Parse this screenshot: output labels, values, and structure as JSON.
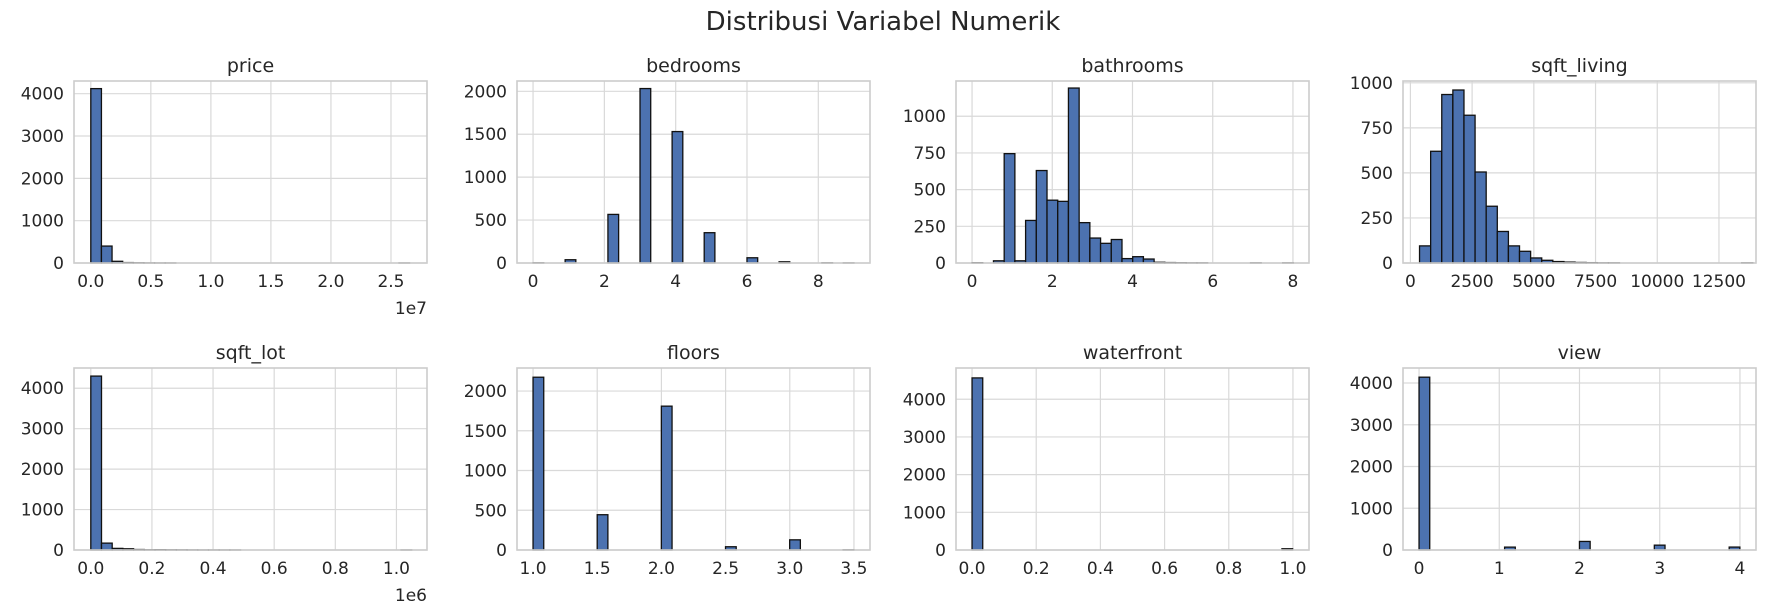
{
  "chart_data": {
    "type": "histogram-grid",
    "title": "Distribusi Variabel Numerik",
    "bar_color": "#4c72b0",
    "edge_color": "#111111",
    "grid": true,
    "panels": [
      {
        "title": "price",
        "type": "bar",
        "xlim": [
          -1400000,
          28000000
        ],
        "ylim": [
          0,
          4300
        ],
        "xticks": [
          0,
          5000000,
          10000000,
          15000000,
          20000000,
          25000000
        ],
        "xticklabels": [
          "0.0",
          "0.5",
          "1.0",
          "1.5",
          "2.0",
          "2.5"
        ],
        "yticks": [
          0,
          1000,
          2000,
          3000,
          4000
        ],
        "yticklabels": [
          "0",
          "1000",
          "2000",
          "3000",
          "4000"
        ],
        "x_offset_label": "1e7",
        "bin_start": 0,
        "bin_width": 885000,
        "values": [
          4120,
          400,
          40,
          10,
          5,
          2,
          1,
          1,
          0,
          0,
          0,
          0,
          0,
          0,
          0,
          0,
          0,
          0,
          0,
          0,
          0,
          0,
          0,
          0,
          0,
          0,
          0,
          0,
          0,
          1
        ]
      },
      {
        "title": "bedrooms",
        "type": "bar",
        "xlim": [
          -0.45,
          9.45
        ],
        "ylim": [
          0,
          2120
        ],
        "xticks": [
          0,
          2,
          4,
          6,
          8
        ],
        "xticklabels": [
          "0",
          "2",
          "4",
          "6",
          "8"
        ],
        "yticks": [
          0,
          500,
          1000,
          1500,
          2000
        ],
        "yticklabels": [
          "0",
          "500",
          "1000",
          "1500",
          "2000"
        ],
        "x_offset_label": "",
        "bin_start": 0,
        "bin_width": 0.3,
        "values": [
          2,
          0,
          0,
          38,
          0,
          0,
          0,
          566,
          0,
          0,
          2032,
          0,
          0,
          1531,
          0,
          0,
          353,
          0,
          0,
          0,
          61,
          0,
          0,
          14,
          0,
          0,
          0,
          2,
          0,
          1
        ]
      },
      {
        "title": "bathrooms",
        "type": "bar",
        "xlim": [
          -0.4,
          8.4
        ],
        "ylim": [
          0,
          1240
        ],
        "xticks": [
          0,
          2,
          4,
          6,
          8
        ],
        "xticklabels": [
          "0",
          "2",
          "4",
          "6",
          "8"
        ],
        "yticks": [
          0,
          250,
          500,
          750,
          1000
        ],
        "yticklabels": [
          "0",
          "250",
          "500",
          "750",
          "1000"
        ],
        "x_offset_label": "",
        "bin_start": 0,
        "bin_width": 0.267,
        "values": [
          2,
          0,
          15,
          745,
          15,
          290,
          630,
          428,
          420,
          1192,
          275,
          170,
          134,
          160,
          30,
          43,
          27,
          5,
          3,
          2,
          1,
          1,
          0,
          0,
          0,
          0,
          1,
          0,
          0,
          1
        ]
      },
      {
        "title": "sqft_living",
        "type": "bar",
        "xlim": [
          -300,
          14000
        ],
        "ylim": [
          0,
          1010
        ],
        "xticks": [
          0,
          2500,
          5000,
          7500,
          10000,
          12500
        ],
        "xticklabels": [
          "0",
          "2500",
          "5000",
          "7500",
          "10000",
          "12500"
        ],
        "yticks": [
          0,
          250,
          500,
          750,
          1000
        ],
        "yticklabels": [
          "0",
          "250",
          "500",
          "750",
          "1000"
        ],
        "x_offset_label": "",
        "bin_start": 370,
        "bin_width": 450,
        "values": [
          95,
          620,
          935,
          960,
          820,
          505,
          315,
          175,
          95,
          65,
          28,
          15,
          8,
          5,
          3,
          2,
          1,
          1,
          0,
          0,
          0,
          0,
          0,
          0,
          0,
          0,
          0,
          0,
          0,
          1
        ]
      },
      {
        "title": "sqft_lot",
        "type": "bar",
        "xlim": [
          -55000,
          1100000
        ],
        "ylim": [
          0,
          4500
        ],
        "xticks": [
          0,
          200000,
          400000,
          600000,
          800000,
          1000000
        ],
        "xticklabels": [
          "0.0",
          "0.2",
          "0.4",
          "0.6",
          "0.8",
          "1.0"
        ],
        "yticks": [
          0,
          1000,
          2000,
          3000,
          4000
        ],
        "yticklabels": [
          "0",
          "1000",
          "2000",
          "3000",
          "4000"
        ],
        "x_offset_label": "1e6",
        "bin_start": 0,
        "bin_width": 35000,
        "values": [
          4300,
          170,
          40,
          30,
          12,
          6,
          8,
          5,
          4,
          2,
          1,
          1,
          1,
          1,
          0,
          0,
          0,
          0,
          0,
          0,
          0,
          0,
          0,
          0,
          0,
          0,
          0,
          0,
          0,
          1
        ]
      },
      {
        "title": "floors",
        "type": "bar",
        "xlim": [
          0.875,
          3.625
        ],
        "ylim": [
          0,
          2290
        ],
        "xticks": [
          1.0,
          1.5,
          2.0,
          2.5,
          3.0,
          3.5
        ],
        "xticklabels": [
          "1.0",
          "1.5",
          "2.0",
          "2.5",
          "3.0",
          "3.5"
        ],
        "yticks": [
          0,
          500,
          1000,
          1500,
          2000
        ],
        "yticklabels": [
          "0",
          "500",
          "1000",
          "1500",
          "2000"
        ],
        "x_offset_label": "",
        "bin_start": 1.0,
        "bin_width": 0.0833,
        "values": [
          2174,
          0,
          0,
          0,
          0,
          0,
          444,
          0,
          0,
          0,
          0,
          0,
          1810,
          0,
          0,
          0,
          0,
          0,
          41,
          0,
          0,
          0,
          0,
          0,
          128,
          0,
          0,
          0,
          0,
          2
        ]
      },
      {
        "title": "waterfront",
        "type": "bar",
        "xlim": [
          -0.05,
          1.05
        ],
        "ylim": [
          0,
          4830
        ],
        "xticks": [
          0.0,
          0.2,
          0.4,
          0.6,
          0.8,
          1.0
        ],
        "xticklabels": [
          "0.0",
          "0.2",
          "0.4",
          "0.6",
          "0.8",
          "1.0"
        ],
        "yticks": [
          0,
          1000,
          2000,
          3000,
          4000
        ],
        "yticklabels": [
          "0",
          "1000",
          "2000",
          "3000",
          "4000"
        ],
        "x_offset_label": "",
        "bin_start": 0,
        "bin_width": 0.0333,
        "values": [
          4567,
          0,
          0,
          0,
          0,
          0,
          0,
          0,
          0,
          0,
          0,
          0,
          0,
          0,
          0,
          0,
          0,
          0,
          0,
          0,
          0,
          0,
          0,
          0,
          0,
          0,
          0,
          0,
          0,
          33
        ]
      },
      {
        "title": "view",
        "type": "bar",
        "xlim": [
          -0.2,
          4.2
        ],
        "ylim": [
          0,
          4360
        ],
        "xticks": [
          0,
          1,
          2,
          3,
          4
        ],
        "xticklabels": [
          "0",
          "1",
          "2",
          "3",
          "4"
        ],
        "yticks": [
          0,
          1000,
          2000,
          3000,
          4000
        ],
        "yticklabels": [
          "0",
          "1000",
          "2000",
          "3000",
          "4000"
        ],
        "x_offset_label": "",
        "bin_start": 0,
        "bin_width": 0.1333,
        "values": [
          4140,
          0,
          0,
          0,
          0,
          0,
          0,
          0,
          69,
          0,
          0,
          0,
          0,
          0,
          0,
          205,
          0,
          0,
          0,
          0,
          0,
          0,
          116,
          0,
          0,
          0,
          0,
          0,
          0,
          70
        ]
      }
    ]
  }
}
